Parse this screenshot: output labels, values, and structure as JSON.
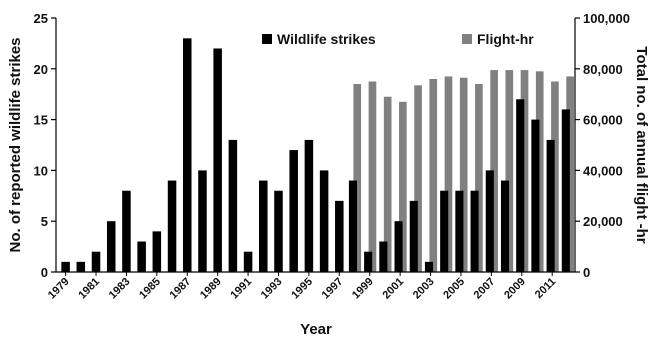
{
  "chart_data": {
    "type": "bar",
    "title": "",
    "xlabel": "Year",
    "ylabel": "No. of reported wildlife strikes",
    "y2label": "Total no. of annual flight -hr",
    "ylim": [
      0,
      25
    ],
    "y2lim": [
      0,
      100000
    ],
    "yticks": [
      "0",
      "5",
      "10",
      "15",
      "20",
      "25"
    ],
    "y2ticks": [
      "0",
      "20,000",
      "40,000",
      "60,000",
      "80,000",
      "100,000"
    ],
    "legend_position": "top",
    "categories": [
      "1979",
      "1980",
      "1981",
      "1982",
      "1983",
      "1984",
      "1985",
      "1986",
      "1987",
      "1988",
      "1989",
      "1990",
      "1991",
      "1992",
      "1993",
      "1994",
      "1995",
      "1996",
      "1997",
      "1998",
      "1999",
      "2000",
      "2001",
      "2002",
      "2003",
      "2004",
      "2005",
      "2006",
      "2007",
      "2008",
      "2009",
      "2010",
      "2011",
      "2012"
    ],
    "xtick_labels": [
      "1979",
      "1981",
      "1983",
      "1985",
      "1987",
      "1989",
      "1991",
      "1993",
      "1995",
      "1997",
      "1999",
      "2001",
      "2003",
      "2005",
      "2007",
      "2009",
      "2011"
    ],
    "series": [
      {
        "name": "Wildlife strikes",
        "axis": "left",
        "color": "#000000",
        "values": [
          1,
          1,
          2,
          5,
          8,
          3,
          4,
          9,
          23,
          10,
          22,
          13,
          2,
          9,
          8,
          12,
          13,
          10,
          7,
          9,
          2,
          3,
          5,
          7,
          1,
          8,
          8,
          8,
          10,
          9,
          17,
          15,
          13,
          16
        ]
      },
      {
        "name": "Flight-hr",
        "axis": "right",
        "color": "#808080",
        "values": [
          null,
          null,
          null,
          null,
          null,
          null,
          null,
          null,
          null,
          null,
          null,
          null,
          null,
          null,
          null,
          null,
          null,
          null,
          null,
          74000,
          75000,
          69000,
          67000,
          73500,
          76000,
          77000,
          76500,
          74000,
          79500,
          79500,
          79500,
          79000,
          75000,
          77000
        ]
      }
    ]
  }
}
